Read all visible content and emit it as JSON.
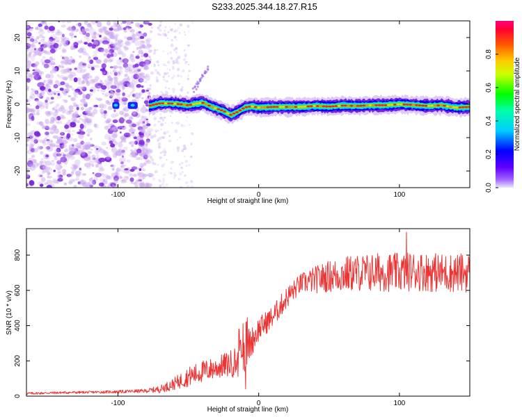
{
  "title": "S233.2025.344.18.27.R15",
  "colors": {
    "snr_line": "#ee3333",
    "background": "#ffffff",
    "axes": "#000000",
    "noise_dots": "#c9a8ee",
    "noise_dots_strong": "#7a22dd"
  },
  "chart_data": [
    {
      "type": "heatmap",
      "title": "S233.2025.344.18.27.R15",
      "xlabel": "Height of straight line (km)",
      "ylabel": "Frequency (Hz)",
      "xlim": [
        -165,
        150
      ],
      "ylim": [
        -25,
        25
      ],
      "xticks": [
        -100,
        0,
        100
      ],
      "yticks": [
        -20,
        -10,
        0,
        10,
        20
      ],
      "colorbar": {
        "label": "Normalized spectral amplitude",
        "range": [
          0,
          1
        ],
        "ticks": [
          0.0,
          0.2,
          0.4,
          0.6,
          0.8
        ],
        "colormap": [
          "#e0e0ff",
          "#8000ff",
          "#0000ff",
          "#00ffff",
          "#00ff00",
          "#ffff00",
          "#ff8000",
          "#ff0000",
          "#ff0066"
        ]
      },
      "noise_region": {
        "x": [
          -165,
          -77
        ],
        "y": [
          -25,
          25
        ]
      },
      "ridge": {
        "x": [
          -78,
          -70,
          -60,
          -50,
          -40,
          -32,
          -25,
          -20,
          -15,
          -10,
          -5,
          0,
          10,
          20,
          30,
          40,
          50,
          60,
          70,
          80,
          90,
          100,
          110,
          120,
          130,
          140,
          150
        ],
        "freq": [
          -0.5,
          0.3,
          0.2,
          -0.3,
          0.5,
          -1.0,
          -2.0,
          -3.2,
          -2.3,
          -1.0,
          -0.6,
          -1.0,
          -0.8,
          -0.8,
          -0.8,
          -0.5,
          -0.7,
          -0.4,
          -0.5,
          -0.3,
          -0.3,
          0.0,
          -0.2,
          -0.5,
          -0.3,
          -1.0,
          -0.8
        ]
      },
      "spike": {
        "x": [
          -46,
          -36
        ],
        "freq": [
          4,
          11
        ]
      }
    },
    {
      "type": "line",
      "xlabel": "Height of straight line (km)",
      "ylabel": "SNR (10 * v/v)",
      "xlim": [
        -165,
        150
      ],
      "ylim": [
        0,
        950
      ],
      "xticks": [
        -100,
        0,
        100
      ],
      "yticks": [
        0,
        200,
        400,
        600,
        800
      ],
      "series": [
        {
          "x": [
            -165,
            -140,
            -120,
            -100,
            -80,
            -70,
            -60,
            -50,
            -40,
            -30,
            -20,
            -15,
            -10,
            -5,
            0,
            10,
            20,
            30,
            40,
            50,
            60,
            70,
            80,
            90,
            100,
            110,
            120,
            130,
            140,
            150
          ],
          "values": [
            15,
            20,
            22,
            25,
            30,
            40,
            70,
            110,
            140,
            160,
            185,
            200,
            260,
            310,
            380,
            450,
            560,
            640,
            660,
            680,
            690,
            700,
            700,
            705,
            700,
            710,
            705,
            700,
            700,
            700
          ],
          "noise": [
            5,
            5,
            5,
            6,
            8,
            15,
            25,
            40,
            45,
            45,
            55,
            70,
            90,
            60,
            50,
            45,
            45,
            40,
            55,
            65,
            75,
            75,
            80,
            80,
            80,
            80,
            80,
            80,
            80,
            80
          ],
          "peak": {
            "x": 105,
            "y": 930
          }
        }
      ]
    }
  ]
}
